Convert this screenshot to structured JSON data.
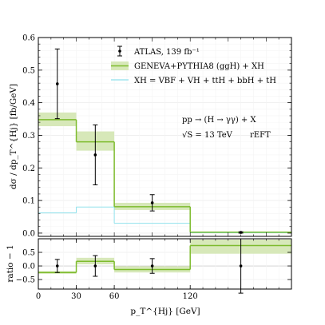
{
  "chart_data": [
    {
      "type": "step-histogram",
      "panel": "main",
      "ylabel": "dσ / dp_T^{Hj}   [fb/GeV]",
      "xlim": [
        0,
        200
      ],
      "ylim": [
        -0.01,
        0.6
      ],
      "yticks": [
        "0.0",
        "0.1",
        "0.2",
        "0.3",
        "0.4",
        "0.5",
        "0.6"
      ],
      "bin_edges": [
        0,
        30,
        60,
        120,
        200
      ],
      "series": [
        {
          "name": "ATLAS, 139 fb⁻¹",
          "kind": "points-with-errors",
          "x": [
            15,
            45,
            90,
            160
          ],
          "y": [
            0.458,
            0.24,
            0.093,
            0.002
          ],
          "err_up": [
            0.107,
            0.092,
            0.025,
            0.002
          ],
          "err_down": [
            0.107,
            0.092,
            0.025,
            0.002
          ],
          "color": "#000000"
        },
        {
          "name": "GENEVA+PYTHIA8 (ggH) + XH",
          "kind": "step-with-band",
          "values": [
            0.348,
            0.28,
            0.081,
            0.003
          ],
          "band_low": [
            0.328,
            0.253,
            0.071,
            0.002
          ],
          "band_high": [
            0.37,
            0.312,
            0.093,
            0.004
          ],
          "color": "#7dbb2d",
          "band_color": "#d7e8b9"
        },
        {
          "name": "XH = VBF + VH + ttH + bbH + tH",
          "kind": "step",
          "values": [
            0.062,
            0.08,
            0.03,
            0.001
          ],
          "color": "#8fe1ec"
        }
      ],
      "annotations": [
        "pp → (H → γγ) + X",
        "√S = 13 TeV",
        "rEFT"
      ]
    },
    {
      "type": "step-histogram",
      "panel": "ratio",
      "ylabel": "ratio − 1",
      "xlabel": "p_T^{Hj}   [GeV]",
      "xlim": [
        0,
        200
      ],
      "ylim": [
        -0.85,
        1.0
      ],
      "xticks": [
        "0",
        "30",
        "60",
        "120"
      ],
      "yticks": [
        "−0.5",
        "0.0",
        "0.5"
      ],
      "bin_edges": [
        0,
        30,
        60,
        120,
        200
      ],
      "series": [
        {
          "kind": "points-with-errors",
          "x": [
            15,
            45,
            90,
            160
          ],
          "y": [
            0.0,
            0.0,
            0.0,
            0.0
          ],
          "err_up": [
            0.24,
            0.38,
            0.27,
            1.0
          ],
          "err_down": [
            0.24,
            0.38,
            0.27,
            1.0
          ],
          "color": "#000000"
        },
        {
          "kind": "step-with-band",
          "values": [
            -0.24,
            0.17,
            -0.13,
            0.75
          ],
          "band_low": [
            -0.29,
            0.06,
            -0.24,
            0.45
          ],
          "band_high": [
            -0.19,
            0.3,
            -0.01,
            0.97
          ],
          "color": "#7dbb2d",
          "band_color": "#d7e8b9"
        }
      ]
    }
  ]
}
